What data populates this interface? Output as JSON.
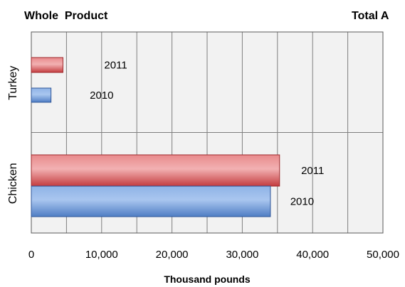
{
  "titles": {
    "left": "Whole  Product",
    "right": "Total A"
  },
  "colors": {
    "series_2011": "#d9595b",
    "series_2010": "#6f9ad8",
    "plot_bg": "#f2f2f2",
    "grid": "#7f7f7f"
  },
  "chart_data": {
    "type": "bar",
    "orientation": "horizontal",
    "categories": [
      "Turkey",
      "Chicken"
    ],
    "series": [
      {
        "name": "2011",
        "values": [
          4500,
          35300
        ]
      },
      {
        "name": "2010",
        "values": [
          2800,
          34000
        ]
      }
    ],
    "data_labels": [
      [
        "2011",
        "2010"
      ],
      [
        "2011",
        "2010"
      ]
    ],
    "xlabel": "Thousand pounds",
    "xlim": [
      0,
      50000
    ],
    "xticks": [
      "0",
      "10,000",
      "20,000",
      "30,000",
      "40,000",
      "50,000"
    ],
    "grid": true
  }
}
